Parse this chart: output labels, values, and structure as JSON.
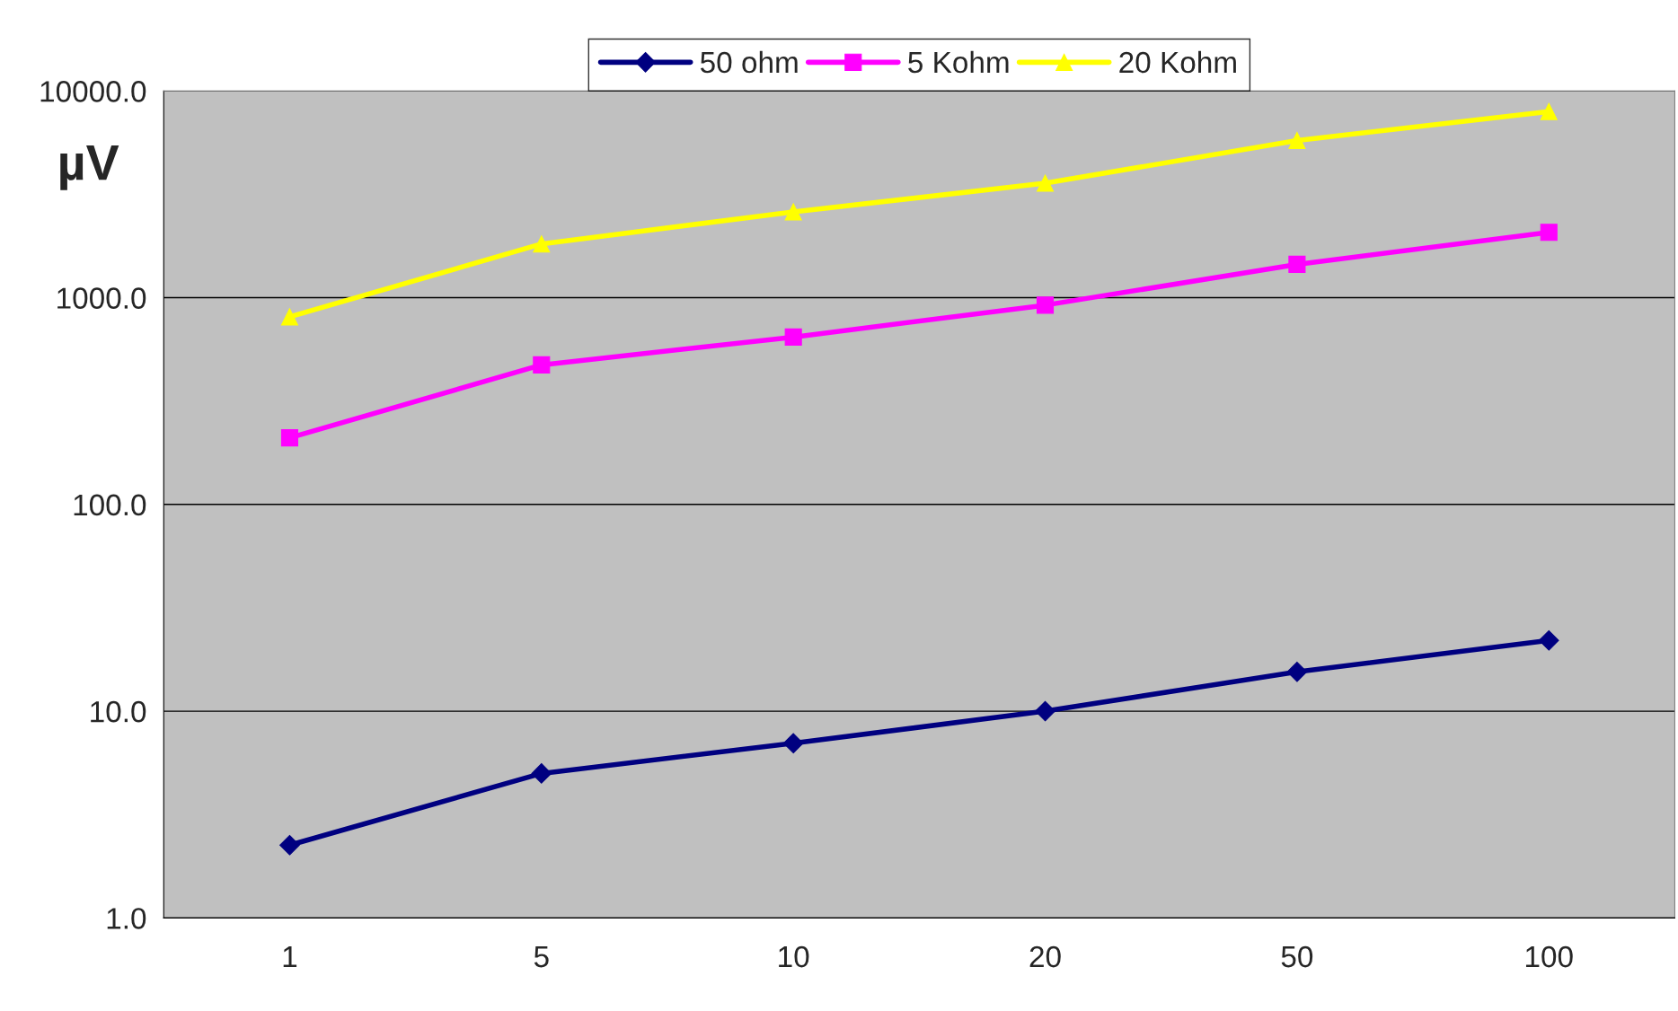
{
  "chart_data": {
    "type": "line",
    "ylabel": "µV",
    "categories": [
      "1",
      "5",
      "10",
      "20",
      "50",
      "100"
    ],
    "series": [
      {
        "name": "50 ohm",
        "color": "#000080",
        "marker": "diamond",
        "values": [
          2.25,
          5.0,
          7.0,
          10.0,
          15.5,
          22
        ]
      },
      {
        "name": "5 Kohm",
        "color": "#ff00ff",
        "marker": "square",
        "values": [
          210,
          473,
          645,
          920,
          1450,
          2070
        ]
      },
      {
        "name": "20 Kohm",
        "color": "#ffff00",
        "marker": "triangle",
        "values": [
          808,
          1820,
          2600,
          3580,
          5760,
          7950
        ]
      }
    ],
    "log": "y",
    "ylim": [
      1,
      10000
    ],
    "yticks": [
      {
        "value": 1,
        "label": "1.0"
      },
      {
        "value": 10,
        "label": "10.0"
      },
      {
        "value": 100,
        "label": "100.0"
      },
      {
        "value": 1000,
        "label": "1000.0"
      },
      {
        "value": 10000,
        "label": "10000.0"
      }
    ],
    "grid": "y",
    "legend": "top",
    "line_style": "solid"
  }
}
